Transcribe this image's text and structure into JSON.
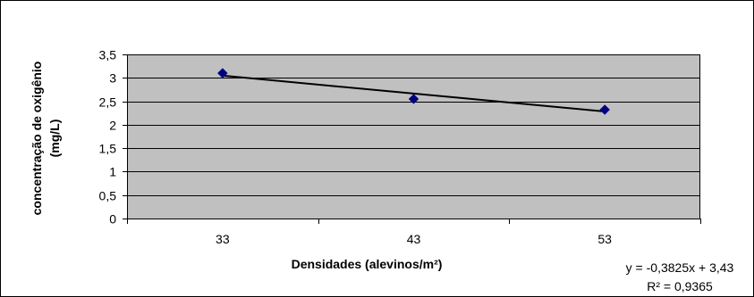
{
  "chart_data": {
    "type": "scatter",
    "title": "",
    "xlabel": "Densidades (alevinos/m²)",
    "ylabel_lines": [
      "concentração de oxigênio",
      "(mg/L)"
    ],
    "categories": [
      "33",
      "43",
      "53"
    ],
    "x": [
      33,
      43,
      53
    ],
    "values": [
      3.1,
      2.55,
      2.32
    ],
    "ylim": [
      0,
      3.5
    ],
    "yticks": [
      "0",
      "0,5",
      "1",
      "1,5",
      "2",
      "2,5",
      "3",
      "3,5"
    ],
    "grid": true,
    "trendline": {
      "type": "linear",
      "slope": -0.3825,
      "intercept": 3.43,
      "equation_text": "y = -0,3825x + 3,43",
      "r2_text": "R² = 0,9365"
    },
    "colors": {
      "plot_background": "#c0c0c0",
      "marker": "#000080",
      "trendline": "#000000",
      "gridline": "#000000",
      "frame": "#000000"
    },
    "legend": "none"
  }
}
